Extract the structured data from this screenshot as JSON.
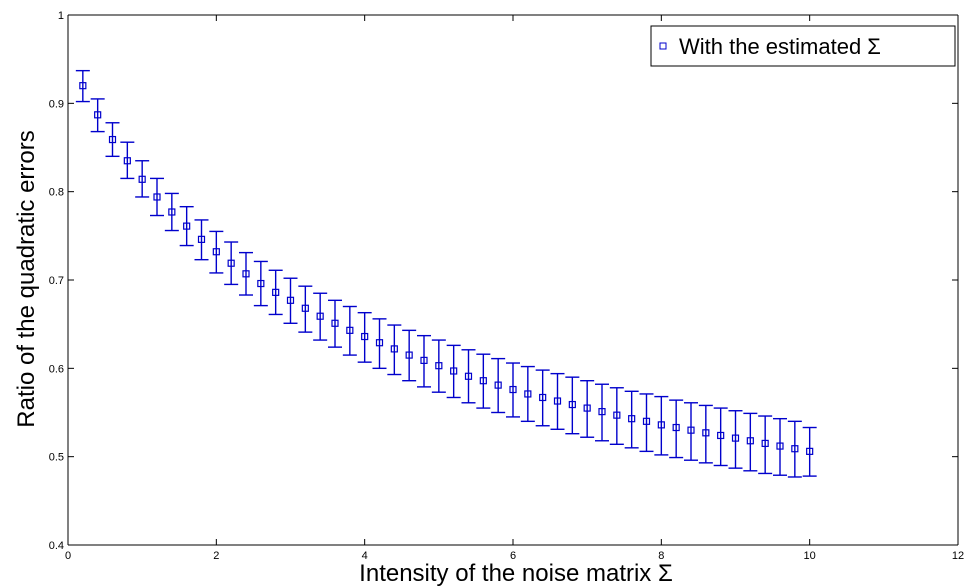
{
  "chart_data": {
    "type": "scatter",
    "title": "",
    "xlabel": "Intensity of the noise matrix Σ",
    "ylabel": "Ratio of the quadratic errors",
    "xlim": [
      0,
      12
    ],
    "ylim": [
      0.4,
      1
    ],
    "xticks": [
      "0",
      "2",
      "4",
      "6",
      "8",
      "10",
      "12"
    ],
    "yticks": [
      "0.4",
      "0.5",
      "0.6",
      "0.7",
      "0.8",
      "0.9",
      "1"
    ],
    "grid": false,
    "legend_position": "top-right",
    "marker": "square",
    "error_bars": true,
    "color": "#0000cc",
    "series": [
      {
        "name": "With the estimated Σ",
        "x": [
          0.2,
          0.4,
          0.6,
          0.8,
          1.0,
          1.2,
          1.4,
          1.6,
          1.8,
          2.0,
          2.2,
          2.4,
          2.6,
          2.8,
          3.0,
          3.2,
          3.4,
          3.6,
          3.8,
          4.0,
          4.2,
          4.4,
          4.6,
          4.8,
          5.0,
          5.2,
          5.4,
          5.6,
          5.8,
          6.0,
          6.2,
          6.4,
          6.6,
          6.8,
          7.0,
          7.2,
          7.4,
          7.6,
          7.8,
          8.0,
          8.2,
          8.4,
          8.6,
          8.8,
          9.0,
          9.2,
          9.4,
          9.6,
          9.8,
          10.0
        ],
        "y": [
          0.92,
          0.887,
          0.859,
          0.835,
          0.814,
          0.794,
          0.777,
          0.761,
          0.746,
          0.732,
          0.719,
          0.707,
          0.696,
          0.686,
          0.677,
          0.668,
          0.659,
          0.651,
          0.643,
          0.636,
          0.629,
          0.622,
          0.615,
          0.609,
          0.603,
          0.597,
          0.591,
          0.586,
          0.581,
          0.576,
          0.571,
          0.567,
          0.563,
          0.559,
          0.555,
          0.551,
          0.547,
          0.543,
          0.54,
          0.536,
          0.533,
          0.53,
          0.527,
          0.524,
          0.521,
          0.518,
          0.515,
          0.512,
          0.509,
          0.506
        ],
        "y_lower": [
          0.902,
          0.868,
          0.84,
          0.815,
          0.794,
          0.773,
          0.756,
          0.739,
          0.723,
          0.708,
          0.695,
          0.683,
          0.671,
          0.661,
          0.651,
          0.641,
          0.632,
          0.624,
          0.615,
          0.607,
          0.6,
          0.593,
          0.586,
          0.579,
          0.573,
          0.567,
          0.561,
          0.555,
          0.55,
          0.545,
          0.54,
          0.535,
          0.531,
          0.526,
          0.522,
          0.518,
          0.514,
          0.51,
          0.506,
          0.502,
          0.499,
          0.496,
          0.493,
          0.49,
          0.487,
          0.484,
          0.481,
          0.479,
          0.477,
          0.478
        ],
        "y_upper": [
          0.937,
          0.905,
          0.878,
          0.856,
          0.835,
          0.815,
          0.798,
          0.783,
          0.768,
          0.755,
          0.743,
          0.731,
          0.721,
          0.711,
          0.702,
          0.693,
          0.685,
          0.677,
          0.67,
          0.663,
          0.656,
          0.649,
          0.643,
          0.637,
          0.632,
          0.626,
          0.621,
          0.616,
          0.611,
          0.606,
          0.602,
          0.598,
          0.594,
          0.59,
          0.586,
          0.582,
          0.578,
          0.574,
          0.571,
          0.568,
          0.564,
          0.561,
          0.558,
          0.555,
          0.552,
          0.549,
          0.546,
          0.543,
          0.54,
          0.533
        ]
      }
    ]
  }
}
